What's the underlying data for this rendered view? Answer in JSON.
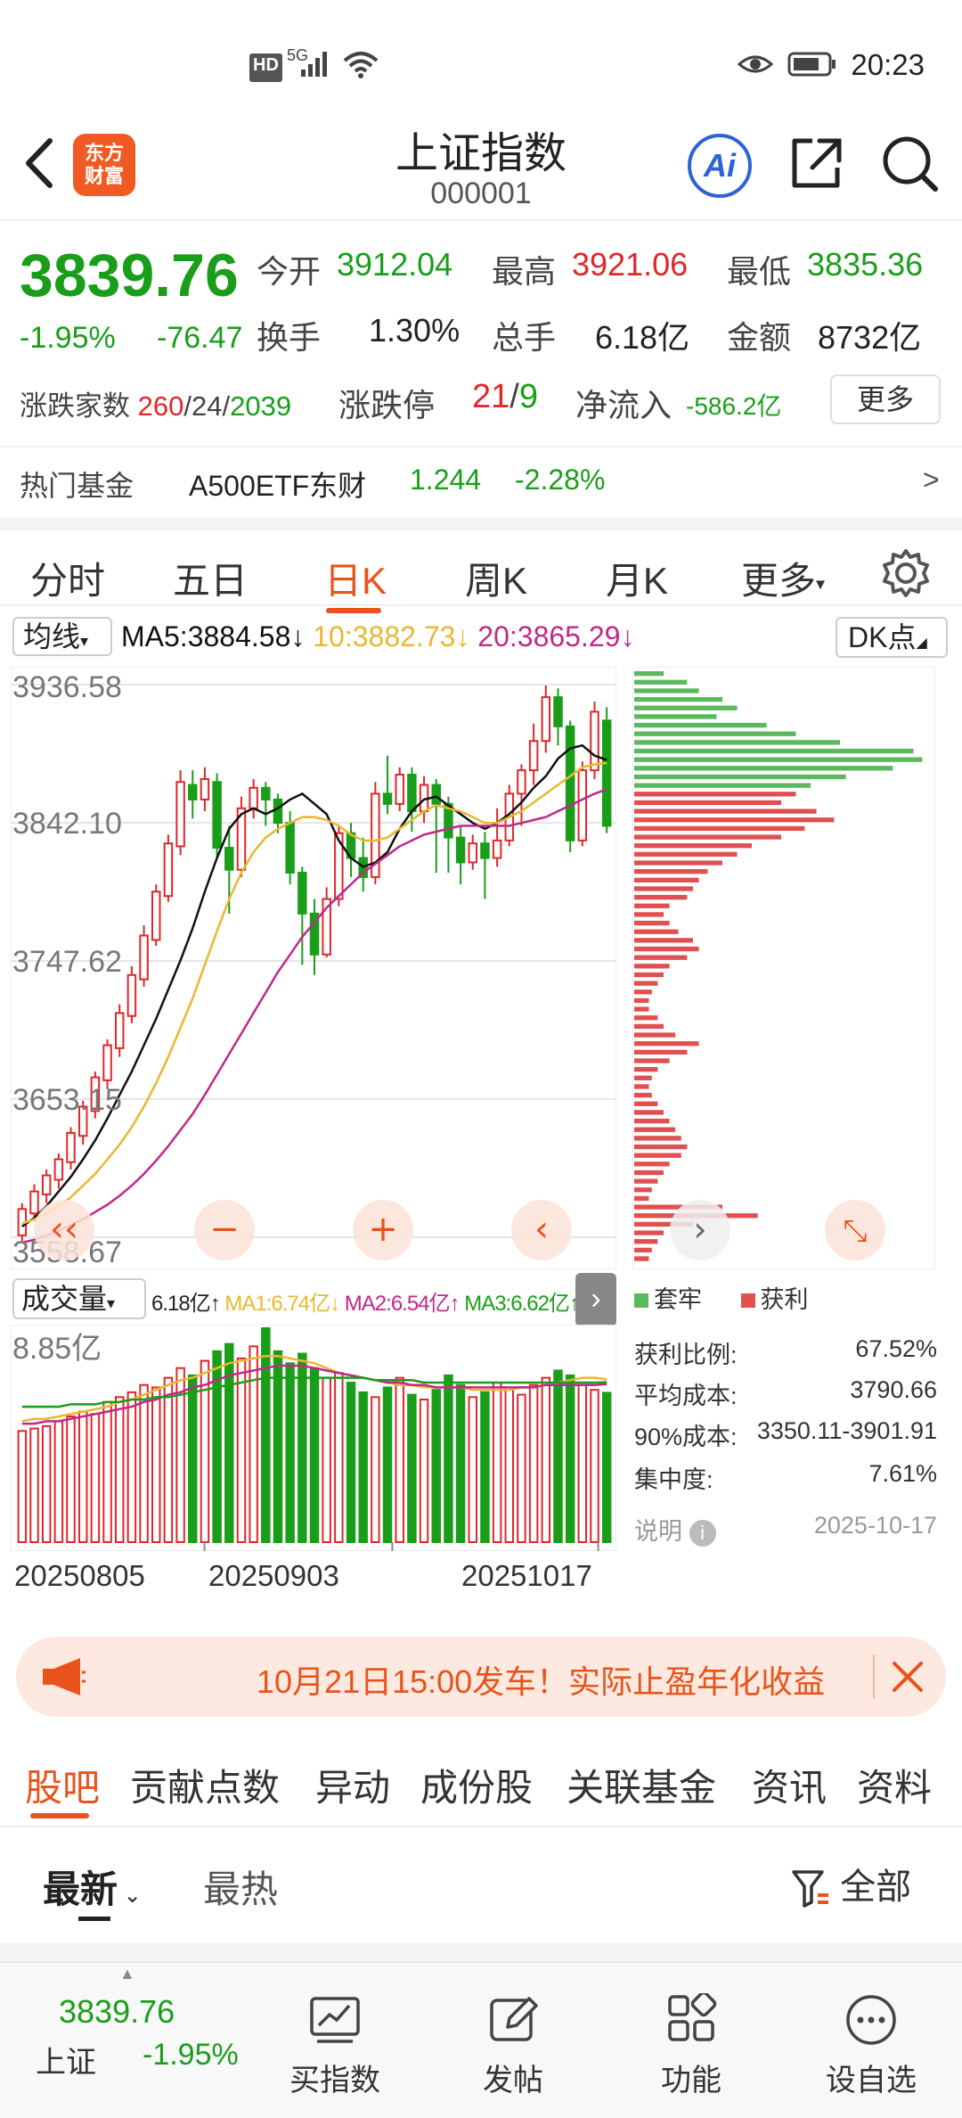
{
  "status_bar": {
    "time": "20:23",
    "network": "5G",
    "hd": "HD"
  },
  "header": {
    "back_icon": "back-arrow-icon",
    "logo_line1": "东方",
    "logo_line2": "财富",
    "title": "上证指数",
    "code": "000001",
    "ai_label": "Ai"
  },
  "quote": {
    "price": "3839.76",
    "change_pct": "-1.95%",
    "change_abs": "-76.47",
    "open_label": "今开",
    "open": "3912.04",
    "high_label": "最高",
    "high": "3921.06",
    "low_label": "最低",
    "low": "3835.36",
    "turnover_label": "换手",
    "turnover": "1.30%",
    "volume_label": "总手",
    "volume": "6.18亿",
    "amount_label": "金额",
    "amount": "8732亿",
    "breadth_label": "涨跌家数",
    "breadth_up": "260",
    "breadth_flat": "24",
    "breadth_down": "2039",
    "limit_label": "涨跌停",
    "limit_up": "21",
    "limit_down": "9",
    "netflow_label": "净流入",
    "netflow": "-586.2亿",
    "more_button": "更多"
  },
  "hot_fund": {
    "label": "热门基金",
    "name": "A500ETF东财",
    "price": "1.244",
    "change": "-2.28%",
    "arrow": ">"
  },
  "period_tabs": [
    {
      "label": "分时"
    },
    {
      "label": "五日"
    },
    {
      "label": "日K"
    },
    {
      "label": "周K"
    },
    {
      "label": "月K"
    },
    {
      "label": "更多"
    }
  ],
  "ma_bar": {
    "selector": "均线",
    "ma5": "MA5:3884.58",
    "ma10": "10:3882.73",
    "ma20": "20:3865.29",
    "dk_button": "DK点"
  },
  "colors": {
    "up": "#e0262a",
    "down": "#1a9e1a",
    "accent": "#e8531c",
    "ma5": "#111111",
    "ma10": "#e8b830",
    "ma20": "#c0288a"
  },
  "chart_data": [
    {
      "type": "candlestick",
      "title": "",
      "y_ticks": [
        "3936.58",
        "3842.10",
        "3747.62",
        "3653.15",
        "3558.67"
      ],
      "ylim": [
        3558.67,
        3936.58
      ],
      "series": [
        {
          "name": "MA5",
          "values": [
            3566,
            3572,
            3580,
            3590,
            3600,
            3612,
            3625,
            3640,
            3656,
            3672,
            3690,
            3708,
            3728,
            3748,
            3770,
            3795,
            3818,
            3838,
            3848,
            3852,
            3848,
            3852,
            3858,
            3862,
            3855,
            3848,
            3830,
            3818,
            3812,
            3815,
            3822,
            3838,
            3850,
            3858,
            3860,
            3854,
            3848,
            3842,
            3838,
            3842,
            3848,
            3856,
            3866,
            3874,
            3886,
            3893,
            3895,
            3888,
            3885
          ]
        },
        {
          "name": "MA10",
          "values": [
            3568,
            3571,
            3575,
            3580,
            3586,
            3594,
            3602,
            3612,
            3622,
            3634,
            3648,
            3664,
            3682,
            3702,
            3722,
            3745,
            3768,
            3790,
            3808,
            3822,
            3832,
            3838,
            3842,
            3846,
            3846,
            3844,
            3840,
            3834,
            3830,
            3830,
            3832,
            3838,
            3844,
            3850,
            3854,
            3852,
            3850,
            3846,
            3842,
            3842,
            3846,
            3850,
            3856,
            3862,
            3868,
            3874,
            3880,
            3882,
            3883
          ]
        },
        {
          "name": "MA20",
          "values": [
            3555,
            3557,
            3560,
            3563,
            3567,
            3571,
            3576,
            3581,
            3587,
            3594,
            3602,
            3611,
            3621,
            3632,
            3643,
            3656,
            3670,
            3684,
            3698,
            3712,
            3726,
            3740,
            3752,
            3764,
            3774,
            3784,
            3792,
            3800,
            3808,
            3814,
            3820,
            3826,
            3830,
            3834,
            3836,
            3838,
            3840,
            3840,
            3840,
            3840,
            3840,
            3842,
            3844,
            3846,
            3850,
            3854,
            3858,
            3862,
            3865
          ]
        }
      ]
    },
    {
      "type": "bar",
      "title": "成交量",
      "y_ticks": [
        "8.85亿"
      ],
      "x_ticks": [
        "20250805",
        "20250903",
        "20251017"
      ],
      "series": [
        {
          "name": "VOL",
          "values": [
            4.6,
            4.7,
            4.8,
            5.0,
            5.2,
            5.4,
            5.3,
            5.8,
            6.0,
            6.2,
            6.5,
            6.4,
            6.8,
            7.2,
            6.9,
            7.5,
            7.9,
            8.2,
            7.6,
            8.1,
            8.85,
            7.9,
            7.4,
            7.8,
            7.2,
            6.8,
            7.0,
            6.6,
            6.2,
            6.0,
            6.4,
            6.8,
            6.1,
            5.9,
            6.3,
            6.9,
            6.5,
            6.0,
            6.2,
            6.6,
            6.4,
            6.1,
            6.5,
            6.8,
            7.1,
            6.9,
            6.6,
            6.3,
            6.18
          ]
        },
        {
          "name": "MA1",
          "values": [
            5.0,
            5.1,
            5.1,
            5.2,
            5.3,
            5.4,
            5.5,
            5.6,
            5.8,
            5.9,
            6.1,
            6.3,
            6.5,
            6.7,
            6.8,
            7.0,
            7.2,
            7.4,
            7.5,
            7.6,
            7.7,
            7.7,
            7.6,
            7.5,
            7.4,
            7.2,
            7.0,
            6.9,
            6.8,
            6.7,
            6.6,
            6.5,
            6.5,
            6.4,
            6.4,
            6.4,
            6.4,
            6.3,
            6.3,
            6.3,
            6.3,
            6.4,
            6.4,
            6.5,
            6.6,
            6.7,
            6.8,
            6.8,
            6.74
          ]
        },
        {
          "name": "MA2",
          "values": [
            4.9,
            4.9,
            5.0,
            5.0,
            5.1,
            5.2,
            5.3,
            5.4,
            5.5,
            5.6,
            5.8,
            5.9,
            6.1,
            6.2,
            6.4,
            6.5,
            6.7,
            6.9,
            7.0,
            7.1,
            7.2,
            7.3,
            7.3,
            7.3,
            7.2,
            7.1,
            7.0,
            6.9,
            6.8,
            6.7,
            6.6,
            6.6,
            6.5,
            6.5,
            6.4,
            6.4,
            6.4,
            6.4,
            6.4,
            6.4,
            6.4,
            6.4,
            6.4,
            6.5,
            6.5,
            6.5,
            6.5,
            6.5,
            6.54
          ]
        },
        {
          "name": "MA3",
          "values": [
            5.6,
            5.6,
            5.6,
            5.6,
            5.7,
            5.7,
            5.7,
            5.8,
            5.8,
            5.9,
            5.9,
            6.0,
            6.0,
            6.1,
            6.2,
            6.3,
            6.4,
            6.5,
            6.6,
            6.7,
            6.8,
            6.8,
            6.8,
            6.8,
            6.8,
            6.8,
            6.8,
            6.8,
            6.8,
            6.7,
            6.7,
            6.7,
            6.7,
            6.6,
            6.6,
            6.6,
            6.6,
            6.6,
            6.6,
            6.6,
            6.6,
            6.6,
            6.6,
            6.6,
            6.6,
            6.6,
            6.6,
            6.6,
            6.62
          ]
        }
      ]
    }
  ],
  "candles": [
    {
      "o": 3560,
      "c": 3578,
      "h": 3582,
      "l": 3556
    },
    {
      "o": 3575,
      "c": 3590,
      "h": 3595,
      "l": 3570
    },
    {
      "o": 3588,
      "c": 3601,
      "h": 3605,
      "l": 3582
    },
    {
      "o": 3598,
      "c": 3612,
      "h": 3616,
      "l": 3592
    },
    {
      "o": 3610,
      "c": 3630,
      "h": 3634,
      "l": 3605
    },
    {
      "o": 3628,
      "c": 3648,
      "h": 3652,
      "l": 3622
    },
    {
      "o": 3645,
      "c": 3668,
      "h": 3672,
      "l": 3640
    },
    {
      "o": 3666,
      "c": 3690,
      "h": 3694,
      "l": 3660
    },
    {
      "o": 3688,
      "c": 3712,
      "h": 3718,
      "l": 3682
    },
    {
      "o": 3710,
      "c": 3738,
      "h": 3744,
      "l": 3705
    },
    {
      "o": 3735,
      "c": 3765,
      "h": 3772,
      "l": 3730
    },
    {
      "o": 3762,
      "c": 3795,
      "h": 3800,
      "l": 3758
    },
    {
      "o": 3792,
      "c": 3828,
      "h": 3834,
      "l": 3788
    },
    {
      "o": 3826,
      "c": 3870,
      "h": 3878,
      "l": 3820
    },
    {
      "o": 3868,
      "c": 3858,
      "h": 3878,
      "l": 3845
    },
    {
      "o": 3858,
      "c": 3872,
      "h": 3880,
      "l": 3850
    },
    {
      "o": 3870,
      "c": 3825,
      "h": 3876,
      "l": 3818
    },
    {
      "o": 3825,
      "c": 3810,
      "h": 3840,
      "l": 3780
    },
    {
      "o": 3810,
      "c": 3852,
      "h": 3860,
      "l": 3805
    },
    {
      "o": 3852,
      "c": 3866,
      "h": 3872,
      "l": 3845
    },
    {
      "o": 3866,
      "c": 3858,
      "h": 3870,
      "l": 3840
    },
    {
      "o": 3858,
      "c": 3842,
      "h": 3862,
      "l": 3835
    },
    {
      "o": 3842,
      "c": 3808,
      "h": 3850,
      "l": 3800
    },
    {
      "o": 3808,
      "c": 3780,
      "h": 3812,
      "l": 3745
    },
    {
      "o": 3780,
      "c": 3752,
      "h": 3790,
      "l": 3738
    },
    {
      "o": 3752,
      "c": 3790,
      "h": 3798,
      "l": 3750
    },
    {
      "o": 3790,
      "c": 3835,
      "h": 3840,
      "l": 3785
    },
    {
      "o": 3835,
      "c": 3818,
      "h": 3842,
      "l": 3805
    },
    {
      "o": 3818,
      "c": 3805,
      "h": 3832,
      "l": 3795
    },
    {
      "o": 3805,
      "c": 3862,
      "h": 3870,
      "l": 3800
    },
    {
      "o": 3862,
      "c": 3855,
      "h": 3888,
      "l": 3848
    },
    {
      "o": 3855,
      "c": 3875,
      "h": 3880,
      "l": 3850
    },
    {
      "o": 3875,
      "c": 3850,
      "h": 3880,
      "l": 3836
    },
    {
      "o": 3850,
      "c": 3868,
      "h": 3874,
      "l": 3842
    },
    {
      "o": 3868,
      "c": 3855,
      "h": 3872,
      "l": 3808
    },
    {
      "o": 3855,
      "c": 3832,
      "h": 3860,
      "l": 3808
    },
    {
      "o": 3832,
      "c": 3815,
      "h": 3840,
      "l": 3800
    },
    {
      "o": 3815,
      "c": 3828,
      "h": 3834,
      "l": 3810
    },
    {
      "o": 3828,
      "c": 3818,
      "h": 3836,
      "l": 3790
    },
    {
      "o": 3818,
      "c": 3830,
      "h": 3852,
      "l": 3812
    },
    {
      "o": 3830,
      "c": 3862,
      "h": 3868,
      "l": 3826
    },
    {
      "o": 3862,
      "c": 3878,
      "h": 3882,
      "l": 3840
    },
    {
      "o": 3878,
      "c": 3898,
      "h": 3910,
      "l": 3868
    },
    {
      "o": 3898,
      "c": 3928,
      "h": 3936,
      "l": 3890
    },
    {
      "o": 3928,
      "c": 3908,
      "h": 3934,
      "l": 3895
    },
    {
      "o": 3908,
      "c": 3830,
      "h": 3912,
      "l": 3822
    },
    {
      "o": 3830,
      "c": 3878,
      "h": 3884,
      "l": 3826
    },
    {
      "o": 3878,
      "c": 3918,
      "h": 3925,
      "l": 3872
    },
    {
      "o": 3912,
      "c": 3840,
      "h": 3921,
      "l": 3835
    }
  ],
  "chip": {
    "legend_loss": "套牢",
    "legend_profit": "获利",
    "profit_ratio_label": "获利比例:",
    "profit_ratio": "67.52%",
    "avg_cost_label": "平均成本:",
    "avg_cost": "3790.66",
    "cost90_label": "90%成本:",
    "cost90": "3350.11-3901.91",
    "concentration_label": "集中度:",
    "concentration": "7.61%",
    "note_label": "说明",
    "date": "2025-10-17",
    "bars_green": [
      10,
      18,
      22,
      30,
      35,
      28,
      45,
      55,
      70,
      95,
      98,
      88,
      72,
      60
    ],
    "bars_red": [
      55,
      50,
      62,
      68,
      58,
      50,
      40,
      35,
      30,
      25,
      22,
      20,
      18,
      12,
      10,
      12,
      15,
      20,
      22,
      18,
      12,
      10,
      8,
      6,
      5,
      5,
      8,
      10,
      14,
      22,
      18,
      12,
      8,
      6,
      5,
      6,
      8,
      10,
      12,
      14,
      16,
      18,
      16,
      12,
      10,
      8,
      6,
      5,
      30,
      42,
      20,
      10,
      8,
      6,
      5
    ]
  },
  "volume_bar": {
    "selector": "成交量",
    "vol": "6.18亿↑",
    "ma1": "MA1:6.74亿↓",
    "ma2": "MA2:6.54亿↑",
    "ma3": "MA3:6.62亿↑",
    "scale": "8.85亿"
  },
  "banner": {
    "text": "10月21日15:00发车！实际止盈年化收益"
  },
  "sub_tabs": [
    {
      "label": "股吧"
    },
    {
      "label": "贡献点数"
    },
    {
      "label": "异动"
    },
    {
      "label": "成份股"
    },
    {
      "label": "关联基金"
    },
    {
      "label": "资讯"
    },
    {
      "label": "资料"
    }
  ],
  "sort": {
    "latest": "最新",
    "hot": "最热",
    "filter": "全部"
  },
  "bottom": {
    "index_price": "3839.76",
    "index_name": "上证",
    "index_change": "-1.95%",
    "buy": "买指数",
    "post": "发帖",
    "func": "功能",
    "watch": "设自选"
  }
}
